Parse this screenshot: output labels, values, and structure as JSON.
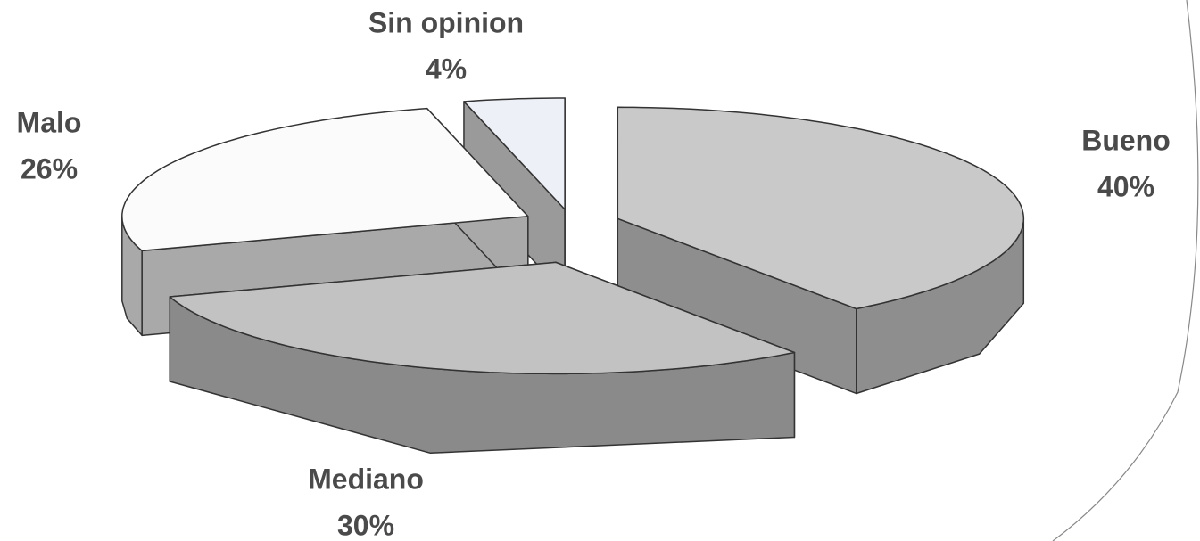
{
  "chart_data": {
    "type": "pie",
    "categories": [
      "Bueno",
      "Mediano",
      "Malo",
      "Sin opinion"
    ],
    "values": [
      40,
      30,
      26,
      4
    ],
    "value_labels": [
      "40%",
      "30%",
      "26%",
      "4%"
    ],
    "colors": [
      "#c9c9c9",
      "#c2c2c2",
      "#fbfbfb",
      "#eef0f7"
    ],
    "side_colors": [
      "#8e8e8e",
      "#8a8a8a",
      "#a9a9a9",
      "#9a9a9a"
    ]
  }
}
